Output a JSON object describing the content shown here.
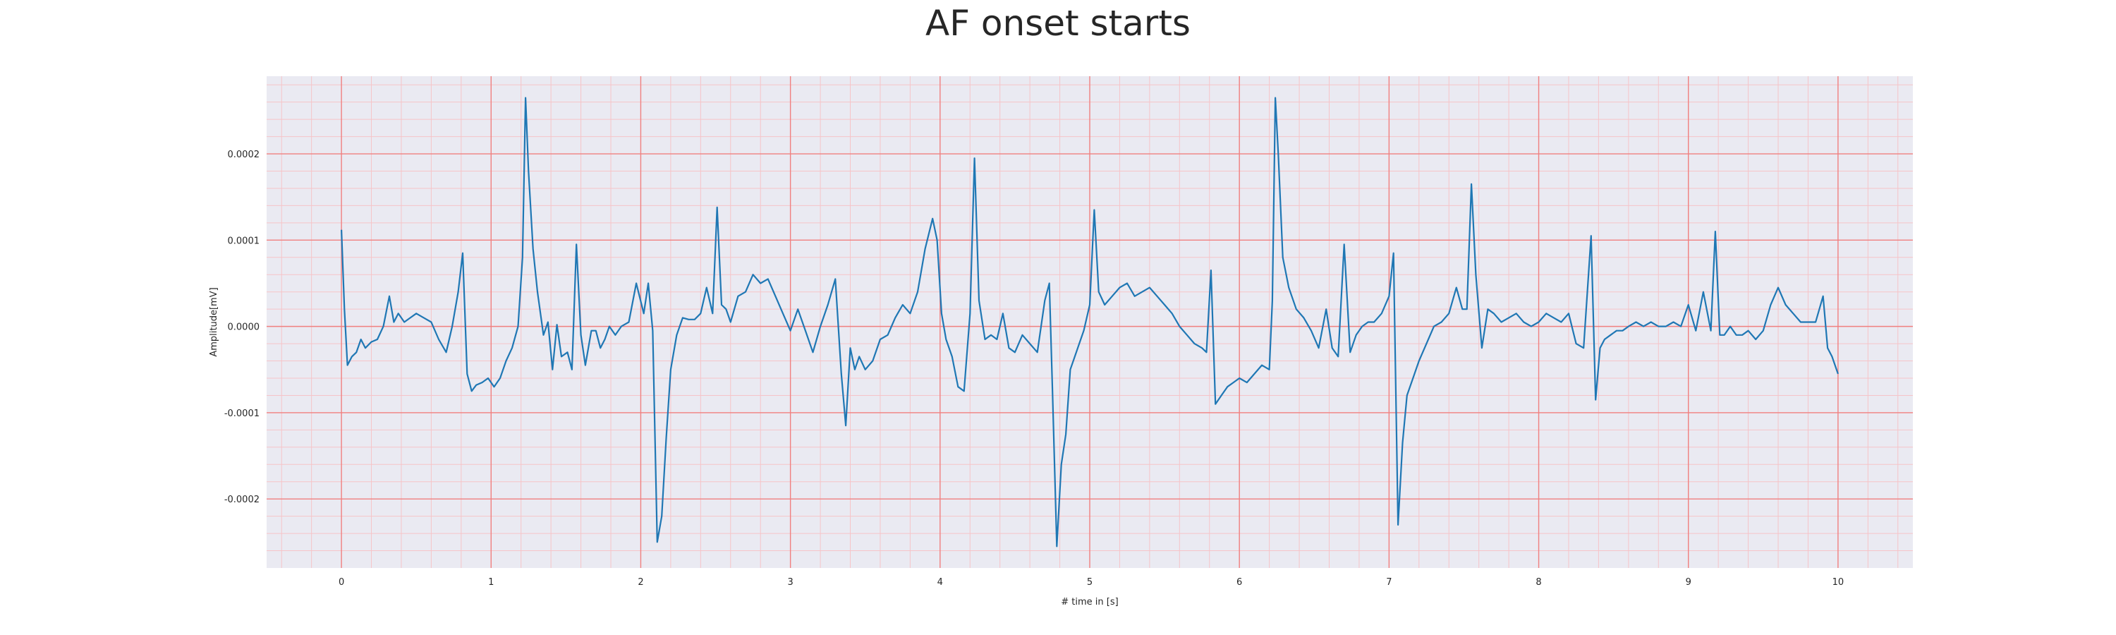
{
  "chart_data": {
    "type": "line",
    "title": "AF onset starts",
    "xlabel": "# time in [s]",
    "ylabel": "Amplitude[mV]",
    "xlim": [
      -0.5,
      10.5
    ],
    "ylim": [
      -0.00028,
      0.00029
    ],
    "x_ticks": [
      0,
      1,
      2,
      3,
      4,
      5,
      6,
      7,
      8,
      9,
      10
    ],
    "x_tick_labels": [
      "0",
      "1",
      "2",
      "3",
      "4",
      "5",
      "6",
      "7",
      "8",
      "9",
      "10"
    ],
    "y_ticks": [
      -0.0002,
      -0.0001,
      0.0,
      0.0001,
      0.0002
    ],
    "y_tick_labels": [
      "-0.0002",
      "-0.0001",
      "0.0000",
      "0.0001",
      "0.0002"
    ],
    "grid": true,
    "grid_major_color": "#f08080",
    "grid_minor_color": "#f6c4c8",
    "background_color": "#eaeaf2",
    "line_color": "#1f77b4",
    "series": [
      {
        "x": [
          0.0,
          0.02,
          0.04,
          0.07,
          0.1,
          0.13,
          0.16,
          0.2,
          0.24,
          0.28,
          0.32,
          0.35,
          0.38,
          0.42,
          0.46,
          0.5,
          0.55,
          0.6,
          0.65,
          0.7,
          0.74,
          0.78,
          0.81,
          0.84,
          0.87,
          0.9,
          0.94,
          0.98,
          1.02,
          1.06,
          1.1,
          1.14,
          1.18,
          1.21,
          1.23,
          1.25,
          1.28,
          1.31,
          1.35,
          1.38,
          1.41,
          1.44,
          1.47,
          1.51,
          1.54,
          1.57,
          1.6,
          1.63,
          1.67,
          1.7,
          1.73,
          1.76,
          1.79,
          1.83,
          1.87,
          1.92,
          1.97,
          2.02,
          2.05,
          2.08,
          2.11,
          2.14,
          2.17,
          2.2,
          2.24,
          2.28,
          2.32,
          2.36,
          2.4,
          2.44,
          2.48,
          2.51,
          2.54,
          2.57,
          2.6,
          2.65,
          2.7,
          2.75,
          2.8,
          2.85,
          2.9,
          2.95,
          3.0,
          3.05,
          3.1,
          3.15,
          3.2,
          3.25,
          3.3,
          3.34,
          3.37,
          3.4,
          3.43,
          3.46,
          3.5,
          3.55,
          3.6,
          3.65,
          3.7,
          3.75,
          3.8,
          3.85,
          3.9,
          3.95,
          3.98,
          4.01,
          4.04,
          4.08,
          4.12,
          4.16,
          4.2,
          4.23,
          4.26,
          4.3,
          4.34,
          4.38,
          4.42,
          4.46,
          4.5,
          4.55,
          4.6,
          4.65,
          4.7,
          4.73,
          4.75,
          4.78,
          4.81,
          4.84,
          4.87,
          4.9,
          4.93,
          4.96,
          5.0,
          5.03,
          5.06,
          5.1,
          5.15,
          5.2,
          5.25,
          5.3,
          5.35,
          5.4,
          5.45,
          5.5,
          5.55,
          5.6,
          5.65,
          5.7,
          5.75,
          5.78,
          5.81,
          5.84,
          5.88,
          5.92,
          5.96,
          6.0,
          6.05,
          6.1,
          6.15,
          6.2,
          6.22,
          6.24,
          6.26,
          6.29,
          6.33,
          6.38,
          6.43,
          6.48,
          6.53,
          6.58,
          6.62,
          6.66,
          6.7,
          6.74,
          6.78,
          6.82,
          6.86,
          6.9,
          6.95,
          7.0,
          7.03,
          7.06,
          7.09,
          7.12,
          7.16,
          7.2,
          7.25,
          7.3,
          7.35,
          7.4,
          7.45,
          7.49,
          7.52,
          7.55,
          7.58,
          7.62,
          7.66,
          7.7,
          7.75,
          7.8,
          7.85,
          7.9,
          7.95,
          8.0,
          8.05,
          8.1,
          8.15,
          8.2,
          8.25,
          8.3,
          8.35,
          8.38,
          8.41,
          8.44,
          8.48,
          8.52,
          8.56,
          8.6,
          8.65,
          8.7,
          8.75,
          8.8,
          8.85,
          8.9,
          8.95,
          9.0,
          9.05,
          9.1,
          9.15,
          9.18,
          9.21,
          9.24,
          9.28,
          9.32,
          9.36,
          9.4,
          9.45,
          9.5,
          9.55,
          9.6,
          9.65,
          9.7,
          9.75,
          9.8,
          9.85,
          9.9,
          9.93,
          9.96,
          10.0
        ],
        "y": [
          0.000112,
          2e-05,
          -4.5e-05,
          -3.5e-05,
          -3e-05,
          -1.5e-05,
          -2.5e-05,
          -1.8e-05,
          -1.5e-05,
          0.0,
          3.5e-05,
          5e-06,
          1.5e-05,
          5e-06,
          1e-05,
          1.5e-05,
          1e-05,
          5e-06,
          -1.5e-05,
          -3e-05,
          0.0,
          4e-05,
          8.5e-05,
          -5.5e-05,
          -7.5e-05,
          -6.8e-05,
          -6.5e-05,
          -6e-05,
          -7e-05,
          -6e-05,
          -4e-05,
          -2.5e-05,
          0.0,
          8e-05,
          0.000265,
          0.00018,
          9e-05,
          4e-05,
          -1e-05,
          5e-06,
          -5e-05,
          2e-06,
          -3.5e-05,
          -3e-05,
          -5e-05,
          9.5e-05,
          -1e-05,
          -4.5e-05,
          -5e-06,
          -5e-06,
          -2.5e-05,
          -1.5e-05,
          0.0,
          -1e-05,
          0.0,
          5e-06,
          5e-05,
          1.5e-05,
          5e-05,
          -5e-06,
          -0.00025,
          -0.00022,
          -0.00013,
          -5e-05,
          -1e-05,
          1e-05,
          8e-06,
          8e-06,
          1.5e-05,
          4.5e-05,
          1.5e-05,
          0.000138,
          2.5e-05,
          2e-05,
          5e-06,
          3.5e-05,
          4e-05,
          6e-05,
          5e-05,
          5.5e-05,
          3.5e-05,
          1.5e-05,
          -5e-06,
          2e-05,
          -5e-06,
          -3e-05,
          0.0,
          2.5e-05,
          5.5e-05,
          -5.5e-05,
          -0.000115,
          -2.5e-05,
          -5e-05,
          -3.5e-05,
          -5e-05,
          -4e-05,
          -1.5e-05,
          -1e-05,
          1e-05,
          2.5e-05,
          1.5e-05,
          4e-05,
          9e-05,
          0.000125,
          0.0001,
          1.5e-05,
          -1.5e-05,
          -3.5e-05,
          -7e-05,
          -7.5e-05,
          1.5e-05,
          0.000195,
          3e-05,
          -1.5e-05,
          -1e-05,
          -1.5e-05,
          1.5e-05,
          -2.5e-05,
          -3e-05,
          -1e-05,
          -2e-05,
          -3e-05,
          3e-05,
          5e-05,
          -7e-05,
          -0.000255,
          -0.00016,
          -0.000125,
          -5e-05,
          -3.5e-05,
          -2e-05,
          -5e-06,
          2.5e-05,
          0.000135,
          4e-05,
          2.5e-05,
          3.5e-05,
          4.5e-05,
          5e-05,
          3.5e-05,
          4e-05,
          4.5e-05,
          3.5e-05,
          2.5e-05,
          1.5e-05,
          0.0,
          -1e-05,
          -2e-05,
          -2.5e-05,
          -3e-05,
          6.5e-05,
          -9e-05,
          -8e-05,
          -7e-05,
          -6.5e-05,
          -6e-05,
          -6.5e-05,
          -5.5e-05,
          -4.5e-05,
          -5e-05,
          3e-05,
          0.000265,
          0.0002,
          8e-05,
          4.5e-05,
          2e-05,
          1e-05,
          -5e-06,
          -2.5e-05,
          2e-05,
          -2.5e-05,
          -3.5e-05,
          9.5e-05,
          -3e-05,
          -1e-05,
          0.0,
          5e-06,
          5e-06,
          1.5e-05,
          3.5e-05,
          8.5e-05,
          -0.00023,
          -0.000135,
          -8e-05,
          -6e-05,
          -4e-05,
          -2e-05,
          0.0,
          5e-06,
          1.5e-05,
          4.5e-05,
          2e-05,
          2e-05,
          0.000165,
          6e-05,
          -2.5e-05,
          2e-05,
          1.5e-05,
          5e-06,
          1e-05,
          1.5e-05,
          5e-06,
          0.0,
          5e-06,
          1.5e-05,
          1e-05,
          5e-06,
          1.5e-05,
          -2e-05,
          -2.5e-05,
          0.000105,
          -8.5e-05,
          -2.5e-05,
          -1.5e-05,
          -1e-05,
          -5e-06,
          -5e-06,
          0.0,
          5e-06,
          0.0,
          5e-06,
          0.0,
          0.0,
          5e-06,
          0.0,
          2.5e-05,
          -5e-06,
          4e-05,
          -5e-06,
          0.00011,
          -1e-05,
          -1e-05,
          0.0,
          -1e-05,
          -1e-05,
          -5e-06,
          -1.5e-05,
          -5e-06,
          2.5e-05,
          4.5e-05,
          2.5e-05,
          1.5e-05,
          5e-06,
          5e-06,
          5e-06,
          3.5e-05,
          -2.5e-05,
          -3.5e-05,
          -5.5e-05
        ]
      }
    ]
  }
}
